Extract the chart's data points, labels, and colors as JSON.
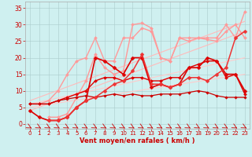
{
  "background_color": "#cff0f0",
  "grid_color": "#aacccc",
  "xlabel": "Vent moyen/en rafales ( km/h )",
  "xlabel_color": "#cc0000",
  "tick_color": "#cc0000",
  "xlim": [
    -0.5,
    23.5
  ],
  "ylim": [
    -1.5,
    37
  ],
  "yticks": [
    0,
    5,
    10,
    15,
    20,
    25,
    30,
    35
  ],
  "xticks": [
    0,
    1,
    2,
    3,
    4,
    5,
    6,
    7,
    8,
    9,
    10,
    11,
    12,
    13,
    14,
    15,
    16,
    17,
    18,
    19,
    20,
    21,
    22,
    23
  ],
  "lines": [
    {
      "x": [
        0,
        23
      ],
      "y": [
        4,
        28
      ],
      "color": "#ffbbbb",
      "lw": 0.8,
      "marker": null
    },
    {
      "x": [
        0,
        23
      ],
      "y": [
        7,
        31
      ],
      "color": "#ffbbbb",
      "lw": 0.8,
      "marker": null
    },
    {
      "x": [
        0,
        23
      ],
      "y": [
        5,
        15
      ],
      "color": "#ffcccc",
      "lw": 0.8,
      "marker": null
    },
    {
      "x": [
        0,
        23
      ],
      "y": [
        6,
        20
      ],
      "color": "#ffcccc",
      "lw": 0.8,
      "marker": null
    },
    {
      "x": [
        0,
        1,
        2,
        3,
        4,
        5,
        6,
        7,
        8,
        9,
        10,
        11,
        12,
        13,
        14,
        15,
        16,
        17,
        18,
        19,
        20,
        21,
        22,
        23
      ],
      "y": [
        6,
        6,
        7,
        10,
        15,
        19,
        20,
        26,
        19,
        19,
        26,
        26,
        29,
        28,
        20,
        19,
        26,
        26,
        26,
        26,
        26,
        30,
        26,
        34
      ],
      "color": "#ff9999",
      "lw": 1.0,
      "marker": "D",
      "ms": 2.0
    },
    {
      "x": [
        2,
        3,
        4,
        5,
        6,
        7,
        8,
        9,
        10,
        11,
        12,
        13,
        14,
        15,
        16,
        17,
        18,
        19,
        20,
        21,
        22,
        23
      ],
      "y": [
        2,
        2,
        3,
        8,
        13,
        21,
        17,
        15,
        16,
        30,
        30.5,
        29,
        20,
        19,
        26,
        25,
        26,
        25.5,
        25,
        28,
        30,
        26
      ],
      "color": "#ff9999",
      "lw": 1.0,
      "marker": "D",
      "ms": 2.0
    },
    {
      "x": [
        0,
        1,
        2,
        3,
        4,
        5,
        6,
        7,
        8,
        9,
        10,
        11,
        12,
        13,
        14,
        15,
        16,
        17,
        18,
        19,
        20,
        21,
        22,
        23
      ],
      "y": [
        4,
        2,
        1,
        1,
        2,
        5,
        7,
        20,
        19,
        17,
        15,
        20,
        20,
        11,
        12,
        11,
        12,
        17,
        17,
        20,
        19,
        15,
        15,
        10
      ],
      "color": "#dd0000",
      "lw": 1.2,
      "marker": "D",
      "ms": 2.5
    },
    {
      "x": [
        0,
        1,
        2,
        3,
        4,
        5,
        6,
        7,
        8,
        9,
        10,
        11,
        12,
        13,
        14,
        15,
        16,
        17,
        18,
        19,
        20,
        21,
        22,
        23
      ],
      "y": [
        6,
        6,
        6,
        7,
        8,
        9,
        10,
        13,
        14,
        14,
        13,
        14,
        14,
        13,
        13,
        14,
        14,
        17,
        18,
        19,
        19,
        14,
        15,
        9
      ],
      "color": "#dd0000",
      "lw": 1.0,
      "marker": "D",
      "ms": 2.0
    },
    {
      "x": [
        0,
        1,
        2,
        3,
        4,
        5,
        6,
        7,
        8,
        9,
        10,
        11,
        12,
        13,
        14,
        15,
        16,
        17,
        18,
        19,
        20,
        21,
        22,
        23
      ],
      "y": [
        6,
        6,
        6,
        7,
        7.5,
        8,
        8.5,
        8,
        8.5,
        9,
        8.5,
        9,
        8.5,
        8.5,
        9,
        9,
        9,
        9.5,
        10,
        9.5,
        8.5,
        8,
        8,
        8
      ],
      "color": "#cc0000",
      "lw": 0.9,
      "marker": "D",
      "ms": 1.8
    },
    {
      "x": [
        2,
        3,
        4,
        5,
        6,
        7,
        8,
        9,
        10,
        11,
        12,
        13,
        14,
        15,
        16,
        17,
        18,
        19,
        20,
        21,
        22,
        23
      ],
      "y": [
        1,
        1,
        2,
        5,
        7,
        8,
        10,
        12,
        13,
        16,
        21,
        12,
        12,
        11,
        12,
        14,
        14,
        13,
        15,
        17,
        26,
        28
      ],
      "color": "#ee3333",
      "lw": 1.1,
      "marker": "D",
      "ms": 2.5
    }
  ]
}
